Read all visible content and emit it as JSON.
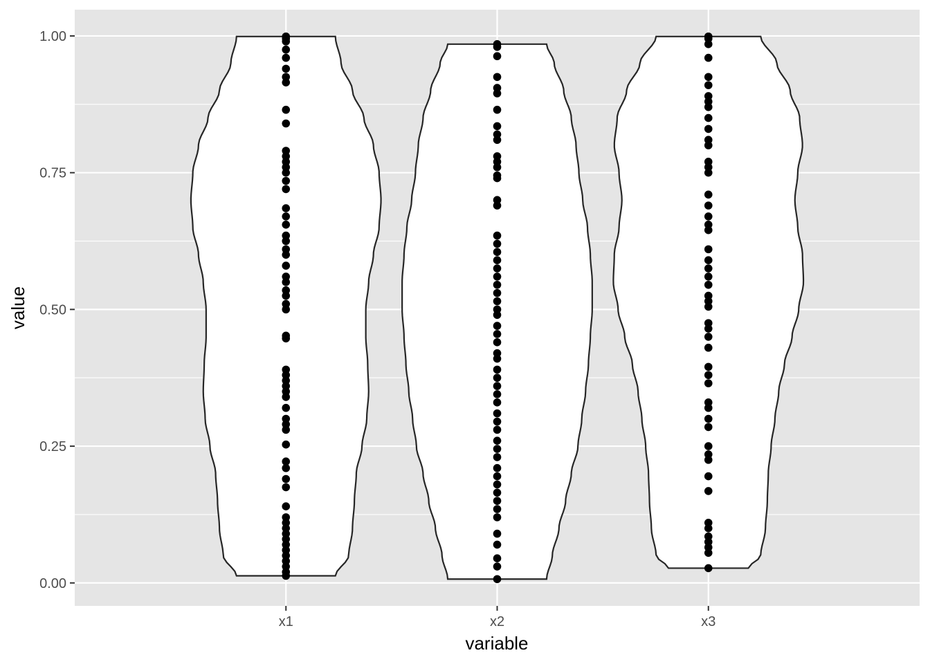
{
  "chart_data": {
    "type": "violin",
    "xlabel": "variable",
    "ylabel": "value",
    "ylim": [
      -0.042,
      1.048
    ],
    "y_ticks": [
      0.0,
      0.25,
      0.5,
      0.75,
      1.0
    ],
    "y_tick_labels": [
      "0.00",
      "0.25",
      "0.50",
      "0.75",
      "1.00"
    ],
    "categories": [
      "x1",
      "x2",
      "x3"
    ],
    "colors": {
      "panel": "#e5e5e5",
      "grid": "#ffffff",
      "violin_fill": "#ffffff",
      "violin_outline": "#262626",
      "point": "#000000"
    },
    "series": [
      {
        "category": "x1",
        "range": [
          0.013,
          0.999
        ],
        "density_profile": [
          [
            0.013,
            0.52
          ],
          [
            0.05,
            0.66
          ],
          [
            0.1,
            0.7
          ],
          [
            0.15,
            0.72
          ],
          [
            0.2,
            0.74
          ],
          [
            0.25,
            0.8
          ],
          [
            0.3,
            0.85
          ],
          [
            0.35,
            0.87
          ],
          [
            0.4,
            0.86
          ],
          [
            0.45,
            0.84
          ],
          [
            0.5,
            0.84
          ],
          [
            0.55,
            0.87
          ],
          [
            0.6,
            0.92
          ],
          [
            0.65,
            0.98
          ],
          [
            0.7,
            1.0
          ],
          [
            0.75,
            0.98
          ],
          [
            0.8,
            0.92
          ],
          [
            0.85,
            0.82
          ],
          [
            0.9,
            0.7
          ],
          [
            0.95,
            0.58
          ],
          [
            0.999,
            0.52
          ]
        ],
        "values": [
          0.013,
          0.02,
          0.03,
          0.04,
          0.05,
          0.06,
          0.07,
          0.08,
          0.09,
          0.1,
          0.11,
          0.12,
          0.14,
          0.175,
          0.19,
          0.21,
          0.222,
          0.253,
          0.28,
          0.29,
          0.3,
          0.32,
          0.34,
          0.35,
          0.36,
          0.37,
          0.38,
          0.39,
          0.447,
          0.452,
          0.5,
          0.51,
          0.525,
          0.535,
          0.55,
          0.56,
          0.58,
          0.6,
          0.61,
          0.625,
          0.635,
          0.655,
          0.67,
          0.685,
          0.72,
          0.735,
          0.75,
          0.76,
          0.77,
          0.78,
          0.79,
          0.84,
          0.865,
          0.915,
          0.925,
          0.94,
          0.96,
          0.975,
          0.99,
          0.995,
          0.999
        ]
      },
      {
        "category": "x2",
        "range": [
          0.007,
          0.985
        ],
        "density_profile": [
          [
            0.007,
            0.52
          ],
          [
            0.05,
            0.58
          ],
          [
            0.1,
            0.65
          ],
          [
            0.15,
            0.72
          ],
          [
            0.2,
            0.78
          ],
          [
            0.25,
            0.85
          ],
          [
            0.3,
            0.89
          ],
          [
            0.35,
            0.93
          ],
          [
            0.4,
            0.96
          ],
          [
            0.45,
            0.98
          ],
          [
            0.5,
            1.0
          ],
          [
            0.55,
            1.0
          ],
          [
            0.6,
            0.98
          ],
          [
            0.65,
            0.95
          ],
          [
            0.7,
            0.9
          ],
          [
            0.75,
            0.86
          ],
          [
            0.8,
            0.83
          ],
          [
            0.85,
            0.78
          ],
          [
            0.9,
            0.7
          ],
          [
            0.95,
            0.6
          ],
          [
            0.985,
            0.52
          ]
        ],
        "values": [
          0.007,
          0.03,
          0.045,
          0.07,
          0.09,
          0.12,
          0.135,
          0.15,
          0.165,
          0.18,
          0.195,
          0.21,
          0.23,
          0.245,
          0.26,
          0.28,
          0.295,
          0.31,
          0.33,
          0.345,
          0.36,
          0.375,
          0.39,
          0.41,
          0.42,
          0.44,
          0.455,
          0.47,
          0.49,
          0.5,
          0.515,
          0.53,
          0.545,
          0.56,
          0.575,
          0.59,
          0.605,
          0.62,
          0.635,
          0.69,
          0.7,
          0.74,
          0.745,
          0.76,
          0.77,
          0.78,
          0.81,
          0.82,
          0.835,
          0.865,
          0.895,
          0.905,
          0.925,
          0.963,
          0.98,
          0.985
        ]
      },
      {
        "category": "x3",
        "range": [
          0.027,
          0.999
        ],
        "density_profile": [
          [
            0.027,
            0.42
          ],
          [
            0.05,
            0.55
          ],
          [
            0.1,
            0.6
          ],
          [
            0.15,
            0.62
          ],
          [
            0.2,
            0.63
          ],
          [
            0.25,
            0.66
          ],
          [
            0.3,
            0.7
          ],
          [
            0.35,
            0.74
          ],
          [
            0.4,
            0.8
          ],
          [
            0.45,
            0.88
          ],
          [
            0.5,
            0.95
          ],
          [
            0.55,
            1.0
          ],
          [
            0.6,
            0.99
          ],
          [
            0.65,
            0.94
          ],
          [
            0.7,
            0.91
          ],
          [
            0.75,
            0.94
          ],
          [
            0.8,
            0.99
          ],
          [
            0.85,
            0.96
          ],
          [
            0.9,
            0.86
          ],
          [
            0.95,
            0.72
          ],
          [
            0.999,
            0.55
          ]
        ],
        "values": [
          0.027,
          0.055,
          0.065,
          0.075,
          0.085,
          0.1,
          0.11,
          0.168,
          0.195,
          0.225,
          0.235,
          0.25,
          0.285,
          0.3,
          0.32,
          0.33,
          0.365,
          0.38,
          0.395,
          0.43,
          0.45,
          0.465,
          0.475,
          0.505,
          0.515,
          0.525,
          0.545,
          0.56,
          0.575,
          0.59,
          0.61,
          0.645,
          0.655,
          0.67,
          0.69,
          0.71,
          0.75,
          0.76,
          0.77,
          0.8,
          0.81,
          0.83,
          0.85,
          0.87,
          0.88,
          0.89,
          0.91,
          0.925,
          0.96,
          0.985,
          0.995,
          0.999
        ]
      }
    ]
  }
}
